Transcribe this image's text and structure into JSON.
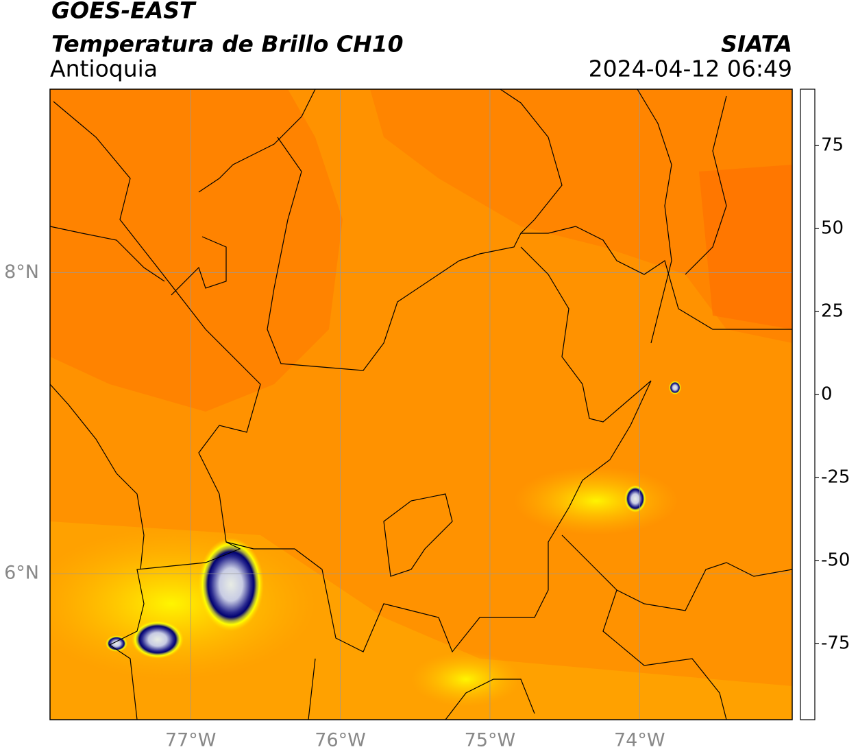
{
  "header": {
    "title": "GOES-EAST",
    "subtitle": "Temperatura de Brillo CH10",
    "region": "Antioquia",
    "source": "SIATA",
    "datetime": "2024-04-12 06:49"
  },
  "map": {
    "lonlim": [
      -77.94,
      -72.98
    ],
    "latlim": [
      5.03,
      9.22
    ],
    "grid": true,
    "lonticks": [
      {
        "value": -77,
        "label": "77°W"
      },
      {
        "value": -76,
        "label": "76°W"
      },
      {
        "value": -75,
        "label": "75°W"
      },
      {
        "value": -74,
        "label": "74°W"
      }
    ],
    "latticks": [
      {
        "value": 6,
        "label": "6°N"
      },
      {
        "value": 8,
        "label": "8°N"
      }
    ]
  },
  "colorbar": {
    "lim": [
      -98,
      92
    ],
    "ticks": [
      -75,
      -50,
      -25,
      0,
      25,
      50,
      75
    ],
    "stops": [
      [
        -98,
        "#ffffff"
      ],
      [
        -94,
        "#ffffff"
      ],
      [
        -94,
        "#00e8e0"
      ],
      [
        -85,
        "#20c0a0"
      ],
      [
        -75,
        "#2a9a50"
      ],
      [
        -65,
        "#2e7d20"
      ],
      [
        -55,
        "#c8d8c0"
      ],
      [
        -48,
        "#ffffff"
      ],
      [
        -40,
        "#b0b4d8"
      ],
      [
        -30,
        "#2a2a90"
      ],
      [
        -26,
        "#000070"
      ],
      [
        -22,
        "#6a6a50"
      ],
      [
        -16,
        "#c0c000"
      ],
      [
        -12,
        "#ffff00"
      ],
      [
        -6,
        "#ffc000"
      ],
      [
        0,
        "#ff9000"
      ],
      [
        6,
        "#ff3000"
      ],
      [
        9,
        "#ff0000"
      ],
      [
        9,
        "#000000"
      ],
      [
        92,
        "#000000"
      ]
    ]
  }
}
